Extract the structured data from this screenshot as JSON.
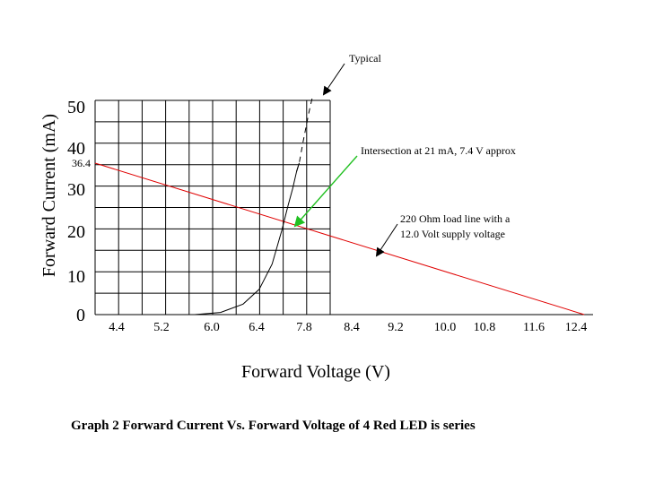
{
  "chart_data": {
    "type": "line",
    "title": "Graph 2  Forward Current Vs. Forward Voltage of 4 Red LED is series",
    "xlabel": "Forward Voltage (V)",
    "ylabel": "Forward Current (mA)",
    "x_ticks": [
      "4.4",
      "5.2",
      "6.0",
      "6.4",
      "7.8",
      "8.4",
      "9.2",
      "10.0",
      "10.8",
      "11.6",
      "12.4"
    ],
    "y_ticks": [
      "0",
      "10",
      "20",
      "30",
      "40",
      "50"
    ],
    "ylim": [
      0,
      50
    ],
    "grid": true,
    "series": [
      {
        "name": "Typical",
        "color": "#000000",
        "points": [
          [
            6.1,
            0
          ],
          [
            6.5,
            0.5
          ],
          [
            6.85,
            2.5
          ],
          [
            7.1,
            6
          ],
          [
            7.3,
            12
          ],
          [
            7.45,
            20
          ],
          [
            7.55,
            26
          ],
          [
            7.62,
            30
          ],
          [
            7.68,
            34
          ],
          [
            7.72,
            36
          ],
          [
            7.78,
            41
          ],
          [
            7.87,
            48
          ],
          [
            7.93,
            52
          ]
        ]
      },
      {
        "name": "220 Ohm load line with a 12.0 Volt supply voltage",
        "color": "#e00000",
        "points": [
          [
            4.0,
            36.4
          ],
          [
            12.0,
            0
          ]
        ]
      }
    ],
    "annotations": {
      "typical_label": "Typical",
      "intersection_label": "Intersection at 21 mA, 7.4 V approx",
      "load_line_label_1": "220 Ohm load line with a",
      "load_line_label_2": "12.0 Volt supply voltage",
      "y_intercept_label": "36.4"
    },
    "colors": {
      "load_line": "#e00000",
      "pointer": "#22c022",
      "curve": "#000000"
    }
  }
}
